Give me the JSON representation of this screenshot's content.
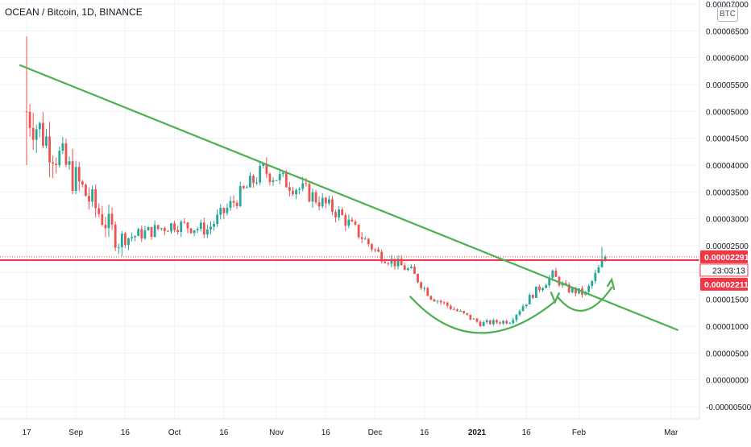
{
  "header": {
    "title": "OCEAN / Bitcoin, 1D, BINANCE",
    "currency_badge": "BTC"
  },
  "chart_data": {
    "type": "candlestick",
    "symbol": "OCEAN / Bitcoin",
    "interval": "1D",
    "exchange": "BINANCE",
    "y_ticks": [
      "0.00007000",
      "0.00006500",
      "0.00006000",
      "0.00005500",
      "0.00005000",
      "0.00004500",
      "0.00004000",
      "0.00003500",
      "0.00003000",
      "0.00002500",
      "0.00002000",
      "0.00001500",
      "0.00001000",
      "0.00000500",
      "0.00000000",
      "-0.00000500"
    ],
    "y_tick_values": [
      7e-05,
      6.5e-05,
      6e-05,
      5.5e-05,
      5e-05,
      4.5e-05,
      4e-05,
      3.5e-05,
      3e-05,
      2.5e-05,
      2e-05,
      1.5e-05,
      1e-05,
      5e-06,
      0,
      -5e-06
    ],
    "ylim": [
      -5.3e-06,
      7e-05
    ],
    "x_ticks": [
      {
        "label": "17",
        "day": 0
      },
      {
        "label": "Sep",
        "day": 15
      },
      {
        "label": "16",
        "day": 30
      },
      {
        "label": "Oct",
        "day": 45
      },
      {
        "label": "16",
        "day": 60
      },
      {
        "label": "Nov",
        "day": 76
      },
      {
        "label": "16",
        "day": 91
      },
      {
        "label": "Dec",
        "day": 106
      },
      {
        "label": "16",
        "day": 121
      },
      {
        "label": "2021",
        "day": 137
      },
      {
        "label": "16",
        "day": 152
      },
      {
        "label": "Feb",
        "day": 168
      },
      {
        "label": "Mar",
        "day": 196
      }
    ],
    "x_range_days": [
      -3,
      203
    ],
    "price_lines": {
      "current_price": {
        "value": 2.291e-05,
        "label": "0.00002291",
        "color": "#f23645"
      },
      "countdown": {
        "label": "23:03:13"
      },
      "level_price": {
        "value": 2.211e-05,
        "label": "0.00002211",
        "color": "#f23645"
      },
      "support_level": {
        "value": 2.23e-05,
        "color": "#f23645"
      }
    },
    "drawings": {
      "trendline_color": "#4caf50",
      "trendline": {
        "from": {
          "day": 0,
          "price": 5.86e-05
        },
        "to": {
          "day": 198,
          "price": 9.3e-06
        }
      },
      "cup_handle": {
        "cup": {
          "from_day": 116,
          "to_day": 160
        },
        "handle": {
          "from_day": 160,
          "to_day": 176
        }
      }
    },
    "colors": {
      "up": "#26a69a",
      "down": "#ef5350"
    },
    "candles": []
  }
}
